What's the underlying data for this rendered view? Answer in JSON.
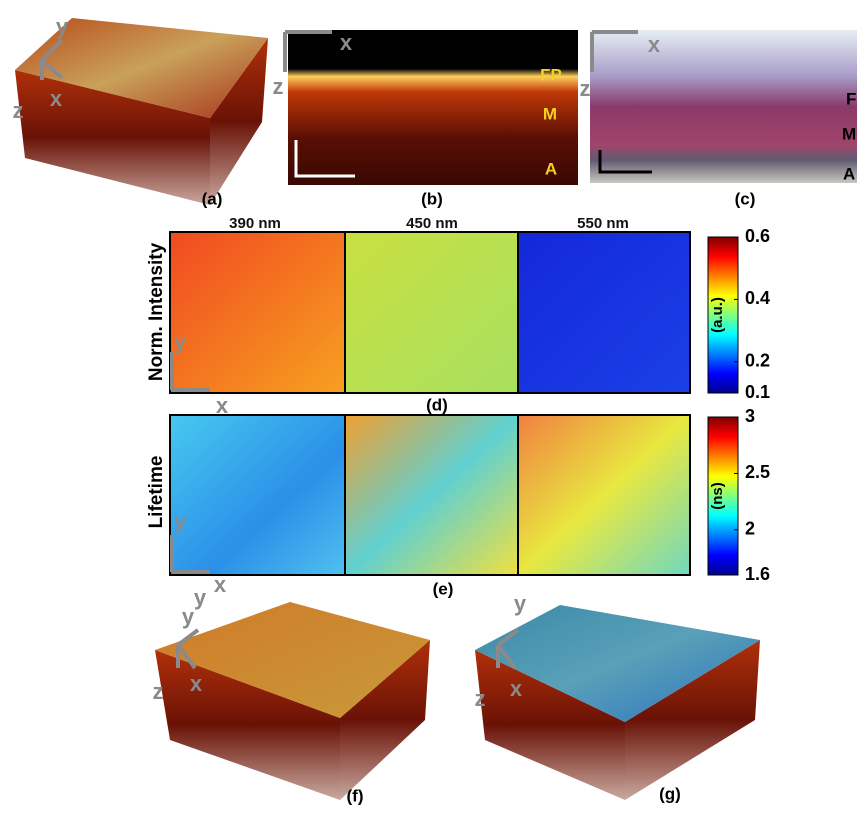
{
  "panels": {
    "a": {
      "label": "(a)",
      "axes": [
        "y",
        "z",
        "x"
      ]
    },
    "b": {
      "label": "(b)",
      "axes": [
        "x",
        "z"
      ],
      "layers": [
        "FP",
        "M",
        "A"
      ]
    },
    "c": {
      "label": "(c)",
      "axes": [
        "x",
        "z"
      ],
      "layers": [
        "FP",
        "M",
        "A"
      ]
    },
    "d": {
      "label": "(d)",
      "axes": [
        "y",
        "x"
      ],
      "wavelengths": [
        "390 nm",
        "450 nm",
        "550 nm"
      ],
      "ylabel": "Norm. Intensity",
      "colorbar": {
        "unit": "(a.u.)",
        "ticks": [
          0.6,
          0.4,
          0.2,
          0.1
        ]
      }
    },
    "e": {
      "label": "(e)",
      "axes": [
        "y",
        "x",
        "y"
      ],
      "ylabel": "Lifetime",
      "colorbar": {
        "unit": "(ns)",
        "ticks": [
          3,
          2.5,
          2,
          1.6
        ]
      }
    },
    "f": {
      "label": "(f)",
      "axes": [
        "y",
        "z",
        "x"
      ]
    },
    "g": {
      "label": "(g)",
      "axes": [
        "y",
        "z",
        "x"
      ]
    }
  }
}
